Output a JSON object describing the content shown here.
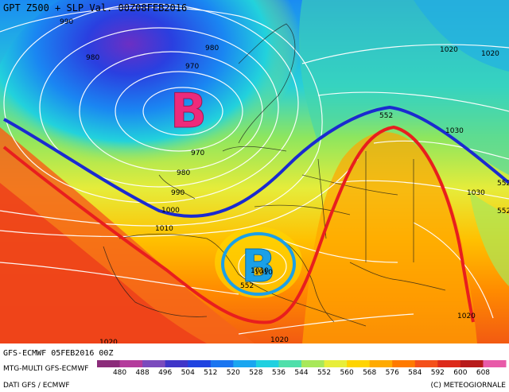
{
  "header": {
    "title": "GPT Z500 + SLP Val. 00Z08FEB2016"
  },
  "footer": {
    "run_label": "GFS-ECMWF 05FEB2016 00Z",
    "model_label": "MTG-MULTI GFS-ECMWF",
    "data_source": "DATI GFS / ECMWF",
    "copyright": "(C) METEOGIORNALE"
  },
  "legend": {
    "ticks": [
      "480",
      "488",
      "496",
      "504",
      "512",
      "520",
      "528",
      "536",
      "544",
      "552",
      "560",
      "568",
      "576",
      "584",
      "592",
      "600",
      "608"
    ],
    "colors": [
      "#8b2c7a",
      "#b43c9c",
      "#7b4bbd",
      "#3f35c8",
      "#1f43e0",
      "#1a75f0",
      "#1aa6f0",
      "#1fd0e0",
      "#4fdfaa",
      "#a8e85a",
      "#e8ee3a",
      "#ffd400",
      "#ffaa00",
      "#ff7a00",
      "#f4501a",
      "#dd2a1a",
      "#b81a1a",
      "#e85aa8"
    ]
  },
  "pressure_labels": [
    "990",
    "980",
    "980",
    "970",
    "970",
    "980",
    "990",
    "1000",
    "1010",
    "1020",
    "1030",
    "1030",
    "1020",
    "1010",
    "1020",
    "1020",
    "1020",
    "552",
    "552",
    "552",
    "552",
    "1010"
  ],
  "centers": {
    "low_north": "B",
    "low_med": "B"
  },
  "colors": {
    "trough_line": "#1a2ad0",
    "ridge_line": "#e81e1e",
    "low_marker_north": "#ee2a7b",
    "low_marker_med": "#1aa0e8"
  }
}
